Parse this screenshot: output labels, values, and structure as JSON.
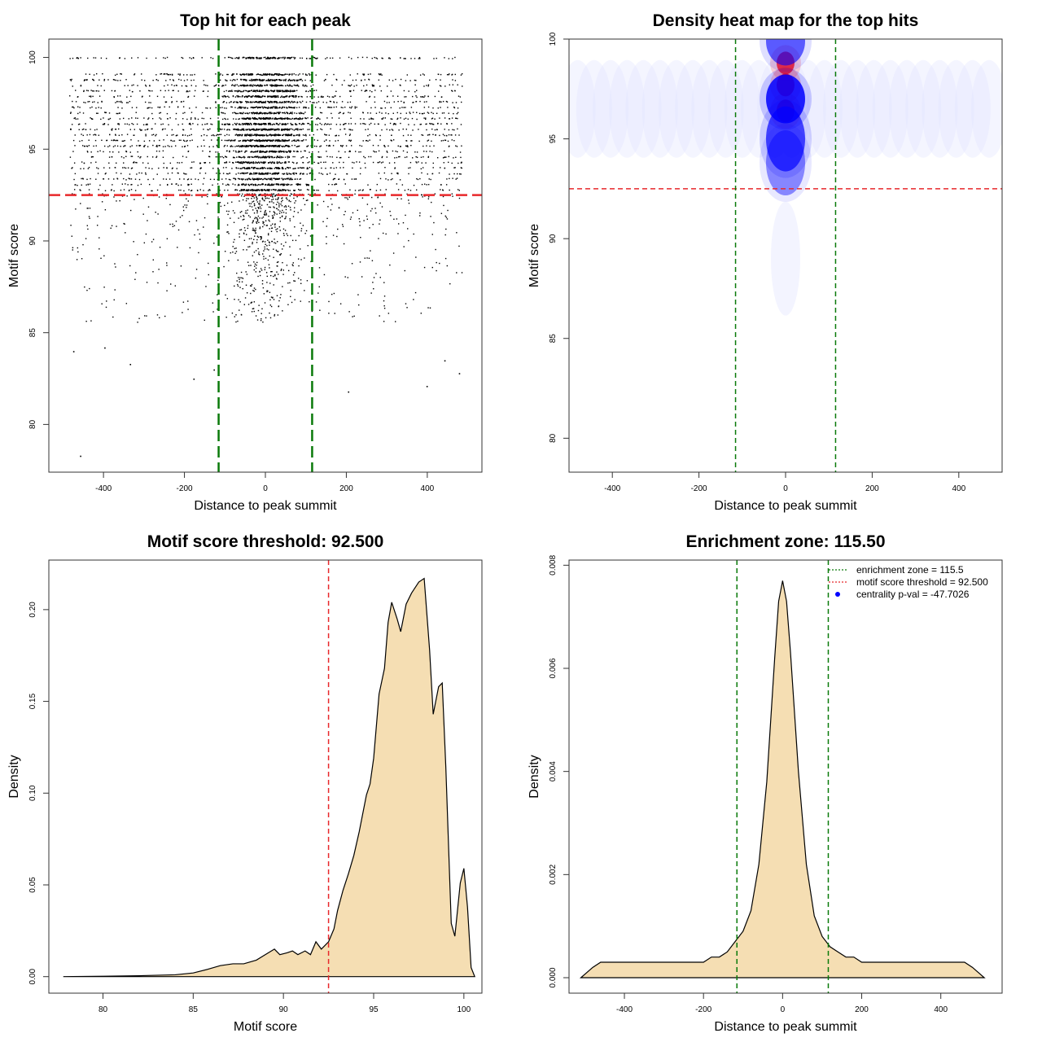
{
  "chart_data": [
    {
      "type": "scatter",
      "title": "Top hit for each peak",
      "xlabel": "Distance to peak summit",
      "ylabel": "Motif score",
      "xlim": [
        -535,
        535
      ],
      "ylim": [
        77.4,
        101.0
      ],
      "x_ticks": [
        -400,
        -200,
        0,
        200,
        400
      ],
      "y_ticks": [
        80,
        85,
        90,
        95,
        100
      ],
      "x_tick_labels": [
        "-400",
        "-200",
        "0",
        "200",
        "400"
      ],
      "y_tick_labels": [
        "80",
        "85",
        "90",
        "95",
        "100"
      ],
      "score_levels": [
        100,
        99.1,
        98.8,
        98.5,
        98.2,
        97.9,
        97.6,
        97.3,
        97.0,
        96.7,
        96.4,
        96.1,
        95.8,
        95.5,
        95.2,
        94.9,
        94.6,
        94.3,
        94.0,
        93.7,
        93.4,
        93.1,
        92.8
      ],
      "n_points_estimated": 6000,
      "low_outliers": [
        {
          "x": -458,
          "y": 78.3
        },
        {
          "x": -335,
          "y": 83.3
        },
        {
          "x": -178,
          "y": 82.5
        },
        {
          "x": 204,
          "y": 81.8
        },
        {
          "x": 398,
          "y": 82.1
        },
        {
          "x": 478,
          "y": 82.8
        },
        {
          "x": -398,
          "y": 84.2
        },
        {
          "x": -475,
          "y": 84.0
        },
        {
          "x": 442,
          "y": 83.5
        },
        {
          "x": -128,
          "y": 83.0
        }
      ],
      "threshold_y": 92.5,
      "zone_x": [
        -115.5,
        115.5
      ],
      "grid": false,
      "colors": {
        "points": "#000000",
        "threshold": "#e8282b",
        "zone": "#0a7a0a"
      }
    },
    {
      "type": "heatmap",
      "title": "Density heat map for the top hits",
      "xlabel": "Distance to peak summit",
      "ylabel": "Motif score",
      "xlim": [
        -500,
        500
      ],
      "ylim": [
        78.3,
        100.0
      ],
      "x_ticks": [
        -400,
        -200,
        0,
        200,
        400
      ],
      "y_ticks": [
        80,
        85,
        90,
        95,
        100
      ],
      "x_tick_labels": [
        "-400",
        "-200",
        "0",
        "200",
        "400"
      ],
      "y_tick_labels": [
        "80",
        "85",
        "90",
        "95",
        "100"
      ],
      "threshold_y": 92.5,
      "zone_x": [
        -115.5,
        115.5
      ],
      "density_blobs": [
        {
          "x": 0,
          "y": 98.8,
          "weight": 0.9,
          "color": "red"
        },
        {
          "x": 0,
          "y": 97.7,
          "weight": 1.0,
          "color": "red"
        },
        {
          "x": 0,
          "y": 96.4,
          "weight": 0.9,
          "color": "red"
        },
        {
          "x": 0,
          "y": 97.0,
          "weight": 1.0,
          "color": "blue"
        },
        {
          "x": 0,
          "y": 95.0,
          "weight": 0.8,
          "color": "blue"
        },
        {
          "x": 0,
          "y": 93.8,
          "weight": 0.5,
          "color": "blue"
        },
        {
          "x": 0,
          "y": 99.9,
          "weight": 0.7,
          "color": "blue"
        }
      ],
      "colors": {
        "low": "#ffffff",
        "mid": "#0000ff",
        "high": "#ff0000",
        "threshold": "#e8282b",
        "zone": "#0a7a0a"
      }
    },
    {
      "type": "area",
      "title": "Motif score threshold: 92.500",
      "xlabel": "Motif score",
      "ylabel": "Density",
      "xlim": [
        77.0,
        101.0
      ],
      "ylim": [
        -0.009,
        0.227
      ],
      "x_ticks": [
        80,
        85,
        90,
        95,
        100
      ],
      "y_ticks": [
        0.0,
        0.05,
        0.1,
        0.15,
        0.2
      ],
      "x_tick_labels": [
        "80",
        "85",
        "90",
        "95",
        "100"
      ],
      "y_tick_labels": [
        "0.00",
        "0.05",
        "0.10",
        "0.15",
        "0.20"
      ],
      "x": [
        77.8,
        80.0,
        82.0,
        84.0,
        85.0,
        85.8,
        86.5,
        87.2,
        87.8,
        88.5,
        89.0,
        89.5,
        89.8,
        90.2,
        90.5,
        90.8,
        91.2,
        91.5,
        91.8,
        92.1,
        92.5,
        92.8,
        93.0,
        93.3,
        93.6,
        93.9,
        94.2,
        94.6,
        94.8,
        95.0,
        95.3,
        95.6,
        95.8,
        96.0,
        96.3,
        96.5,
        96.8,
        97.1,
        97.5,
        97.8,
        98.1,
        98.3,
        98.6,
        98.8,
        99.0,
        99.3,
        99.5,
        99.8,
        100.0,
        100.2,
        100.4,
        100.6
      ],
      "values": [
        0.0,
        0.0002,
        0.0005,
        0.001,
        0.002,
        0.004,
        0.006,
        0.007,
        0.007,
        0.009,
        0.012,
        0.015,
        0.012,
        0.013,
        0.014,
        0.012,
        0.014,
        0.012,
        0.019,
        0.015,
        0.019,
        0.026,
        0.036,
        0.047,
        0.056,
        0.066,
        0.079,
        0.099,
        0.105,
        0.119,
        0.154,
        0.168,
        0.193,
        0.204,
        0.195,
        0.188,
        0.203,
        0.209,
        0.215,
        0.217,
        0.178,
        0.143,
        0.158,
        0.16,
        0.114,
        0.029,
        0.022,
        0.051,
        0.059,
        0.038,
        0.005,
        0.0
      ],
      "threshold_x": 92.5,
      "colors": {
        "fill": "#f5deb3",
        "line": "#000000",
        "threshold": "#e8282b"
      }
    },
    {
      "type": "area",
      "title": "Enrichment zone: 115.50",
      "xlabel": "Distance to peak summit",
      "ylabel": "Density",
      "xlim": [
        -540,
        555
      ],
      "ylim": [
        -0.0003,
        0.0081
      ],
      "x_ticks": [
        -400,
        -200,
        0,
        200,
        400
      ],
      "y_ticks": [
        0.0,
        0.002,
        0.004,
        0.006,
        0.008
      ],
      "x_tick_labels": [
        "-400",
        "-200",
        "0",
        "200",
        "400"
      ],
      "y_tick_labels": [
        "0.000",
        "0.002",
        "0.004",
        "0.006",
        "0.008"
      ],
      "x": [
        -510,
        -495,
        -480,
        -460,
        -440,
        -420,
        -400,
        -380,
        -360,
        -340,
        -320,
        -300,
        -280,
        -260,
        -240,
        -220,
        -200,
        -180,
        -160,
        -140,
        -120,
        -100,
        -80,
        -60,
        -40,
        -20,
        -10,
        0,
        10,
        20,
        40,
        60,
        80,
        100,
        120,
        140,
        160,
        180,
        200,
        220,
        240,
        260,
        280,
        300,
        320,
        340,
        360,
        380,
        400,
        420,
        440,
        460,
        480,
        495,
        510
      ],
      "values": [
        0.0,
        0.0001,
        0.0002,
        0.0003,
        0.0003,
        0.0003,
        0.0003,
        0.0003,
        0.0003,
        0.0003,
        0.0003,
        0.0003,
        0.0003,
        0.0003,
        0.0003,
        0.0003,
        0.0003,
        0.0004,
        0.0004,
        0.0005,
        0.0007,
        0.0009,
        0.0013,
        0.0022,
        0.0038,
        0.0062,
        0.0073,
        0.0077,
        0.0073,
        0.0063,
        0.004,
        0.0022,
        0.0012,
        0.0008,
        0.0006,
        0.0005,
        0.0004,
        0.0004,
        0.0003,
        0.0003,
        0.0003,
        0.0003,
        0.0003,
        0.0003,
        0.0003,
        0.0003,
        0.0003,
        0.0003,
        0.0003,
        0.0003,
        0.0003,
        0.0003,
        0.0002,
        0.0001,
        0.0
      ],
      "zone_x": [
        -115.5,
        115.5
      ],
      "legend": {
        "position": "top-right",
        "entries": [
          {
            "label": "enrichment zone = 115.5",
            "kind": "dotted-line",
            "color": "#0a7a0a"
          },
          {
            "label": "motif score threshold = 92.500",
            "kind": "dotted-line",
            "color": "#e8282b"
          },
          {
            "label": "centrality p-val = -47.7026",
            "kind": "dot",
            "color": "#0000ff"
          }
        ]
      },
      "colors": {
        "fill": "#f5deb3",
        "line": "#000000",
        "zone": "#0a7a0a"
      }
    }
  ]
}
